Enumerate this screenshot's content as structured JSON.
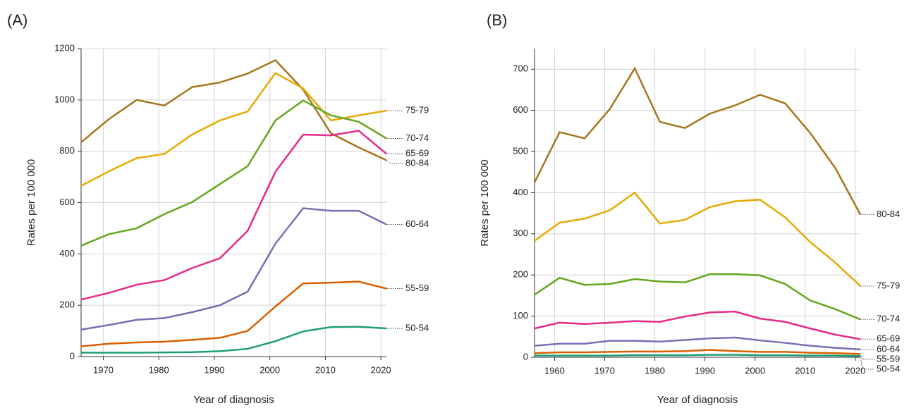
{
  "chart_data": [
    {
      "type": "line",
      "panel": "(A)",
      "x_label": "Year of diagnosis",
      "y_label": "Rates per 100 000",
      "x": [
        1966,
        1971,
        1976,
        1981,
        1986,
        1991,
        1996,
        2001,
        2006,
        2011,
        2016,
        2021
      ],
      "xlim": [
        1966,
        2021
      ],
      "xticks": [
        1970,
        1980,
        1990,
        2000,
        2010,
        2020
      ],
      "ylim": [
        0,
        1200
      ],
      "yticks": [
        0,
        200,
        400,
        600,
        800,
        1000,
        1200
      ],
      "grid": true,
      "series": [
        {
          "name": "80-84",
          "color": "#a6761d",
          "values": [
            835,
            925,
            1000,
            978,
            1050,
            1068,
            1103,
            1155,
            1040,
            870,
            815,
            765
          ]
        },
        {
          "name": "75-79",
          "color": "#e6ab02",
          "values": [
            665,
            722,
            773,
            790,
            865,
            920,
            955,
            1105,
            1045,
            920,
            940,
            958
          ]
        },
        {
          "name": "70-74",
          "color": "#66a61e",
          "values": [
            432,
            477,
            500,
            555,
            602,
            672,
            742,
            920,
            998,
            940,
            915,
            850
          ]
        },
        {
          "name": "65-69",
          "color": "#e7298a",
          "values": [
            222,
            248,
            280,
            298,
            345,
            383,
            490,
            720,
            865,
            862,
            880,
            790
          ]
        },
        {
          "name": "60-64",
          "color": "#7570b3",
          "values": [
            105,
            123,
            143,
            150,
            173,
            200,
            253,
            440,
            578,
            568,
            568,
            515
          ]
        },
        {
          "name": "55-59",
          "color": "#d95f02",
          "values": [
            40,
            50,
            55,
            58,
            65,
            73,
            100,
            195,
            285,
            288,
            292,
            265
          ]
        },
        {
          "name": "50-54",
          "color": "#1b9e77",
          "values": [
            15,
            15,
            15,
            16,
            17,
            21,
            30,
            60,
            98,
            115,
            116,
            110
          ]
        }
      ]
    },
    {
      "type": "line",
      "panel": "(B)",
      "x_label": "Year of diagnosis",
      "y_label": "Rates per 100 000",
      "x": [
        1956,
        1961,
        1966,
        1971,
        1976,
        1981,
        1986,
        1991,
        1996,
        2001,
        2006,
        2011,
        2016,
        2021
      ],
      "xlim": [
        1956,
        2021
      ],
      "xticks": [
        1960,
        1970,
        1980,
        1990,
        2000,
        2010,
        2020
      ],
      "ylim": [
        0,
        750
      ],
      "yticks": [
        0,
        100,
        200,
        300,
        400,
        500,
        600,
        700
      ],
      "grid": true,
      "series": [
        {
          "name": "80-84",
          "color": "#a6761d",
          "values": [
            425,
            547,
            532,
            603,
            702,
            572,
            557,
            592,
            612,
            638,
            617,
            545,
            460,
            347
          ]
        },
        {
          "name": "75-79",
          "color": "#e6ab02",
          "values": [
            283,
            327,
            337,
            357,
            400,
            325,
            334,
            365,
            379,
            383,
            340,
            280,
            230,
            173
          ]
        },
        {
          "name": "70-74",
          "color": "#66a61e",
          "values": [
            152,
            193,
            176,
            178,
            190,
            184,
            182,
            202,
            202,
            199,
            178,
            138,
            117,
            92
          ]
        },
        {
          "name": "65-69",
          "color": "#e7298a",
          "values": [
            70,
            84,
            81,
            84,
            88,
            86,
            99,
            109,
            111,
            94,
            86,
            70,
            55,
            44
          ]
        },
        {
          "name": "60-64",
          "color": "#7570b3",
          "values": [
            28,
            33,
            33,
            40,
            40,
            38,
            42,
            46,
            48,
            41,
            35,
            28,
            23,
            19
          ]
        },
        {
          "name": "55-59",
          "color": "#d95f02",
          "values": [
            10,
            12,
            12,
            13,
            14,
            14,
            15,
            18,
            15,
            13,
            13,
            11,
            10,
            8
          ]
        },
        {
          "name": "50-54",
          "color": "#1b9e77",
          "values": [
            4,
            4,
            4,
            4,
            5,
            5,
            5,
            6,
            6,
            5,
            5,
            4,
            4,
            3
          ]
        }
      ]
    }
  ]
}
